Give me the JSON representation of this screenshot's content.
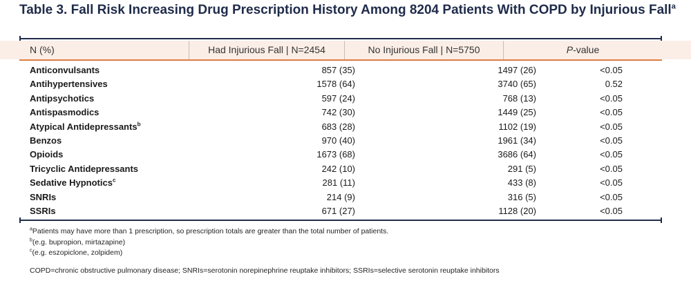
{
  "title": {
    "text": "Table 3. Fall Risk Increasing Drug Prescription History Among 8204 Patients With COPD by Injurious Fall",
    "sup": "a"
  },
  "headers": {
    "label": "N (%)",
    "had": "Had Injurious Fall | N=2454",
    "no": "No Injurious Fall | N=5750",
    "p_italic": "P",
    "p_rest": "-value"
  },
  "rows": [
    {
      "label": "Anticonvulsants",
      "sup": "",
      "had": "857 (35)",
      "no": "1497 (26)",
      "p": "<0.05"
    },
    {
      "label": "Antihypertensives",
      "sup": "",
      "had": "1578 (64)",
      "no": "3740 (65)",
      "p": "0.52"
    },
    {
      "label": "Antipsychotics",
      "sup": "",
      "had": "597 (24)",
      "no": "768 (13)",
      "p": "<0.05"
    },
    {
      "label": "Antispasmodics",
      "sup": "",
      "had": "742 (30)",
      "no": "1449 (25)",
      "p": "<0.05"
    },
    {
      "label": "Atypical Antidepressants",
      "sup": "b",
      "had": "683 (28)",
      "no": "1102 (19)",
      "p": "<0.05"
    },
    {
      "label": "Benzos",
      "sup": "",
      "had": "970 (40)",
      "no": "1961 (34)",
      "p": "<0.05"
    },
    {
      "label": "Opioids",
      "sup": "",
      "had": "1673 (68)",
      "no": "3686 (64)",
      "p": "<0.05"
    },
    {
      "label": "Tricyclic Antidepressants",
      "sup": "",
      "had": "242 (10)",
      "no": "291 (5)",
      "p": "<0.05"
    },
    {
      "label": "Sedative Hypnotics",
      "sup": "c",
      "had": "281 (11)",
      "no": "433 (8)",
      "p": "<0.05"
    },
    {
      "label": "SNRIs",
      "sup": "",
      "had": "214 (9)",
      "no": "316 (5)",
      "p": "<0.05"
    },
    {
      "label": "SSRIs",
      "sup": "",
      "had": "671 (27)",
      "no": "1128 (20)",
      "p": "<0.05"
    }
  ],
  "footnotes": [
    {
      "mark": "a",
      "text": "Patients may have more than 1 prescription, so prescription totals are greater than the total number of patients."
    },
    {
      "mark": "b",
      "text": "(e.g. bupropion, mirtazapine)"
    },
    {
      "mark": "c",
      "text": "(e.g. eszopiclone, zolpidem)"
    }
  ],
  "abbreviations": "COPD=chronic obstructive pulmonary disease; SNRIs=serotonin norepinephrine reuptake inhibitors; SSRIs=selective serotonin reuptake inhibitors",
  "colors": {
    "title": "#1f2b4a",
    "header_bg": "#fbeee6",
    "accent": "#e07a3f"
  }
}
